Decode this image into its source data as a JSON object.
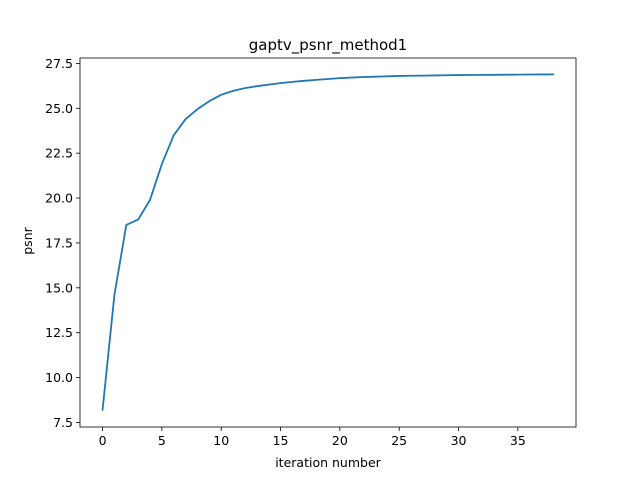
{
  "chart_data": {
    "type": "line",
    "title": "gaptv_psnr_method1",
    "xlabel": "iteration number",
    "ylabel": "psnr",
    "xlim": [
      -1.9,
      39.9
    ],
    "ylim": [
      7.25,
      27.8
    ],
    "x_ticks": [
      0,
      5,
      10,
      15,
      20,
      25,
      30,
      35
    ],
    "x_tick_labels": [
      "0",
      "5",
      "10",
      "15",
      "20",
      "25",
      "30",
      "35"
    ],
    "y_ticks": [
      7.5,
      10.0,
      12.5,
      15.0,
      17.5,
      20.0,
      22.5,
      25.0,
      27.5
    ],
    "y_tick_labels": [
      "7.5",
      "10.0",
      "12.5",
      "15.0",
      "17.5",
      "20.0",
      "22.5",
      "25.0",
      "27.5"
    ],
    "grid": false,
    "color": "#1f77b4",
    "series": [
      {
        "x": [
          0,
          1,
          2,
          3,
          4,
          5,
          6,
          7,
          8,
          9,
          10,
          11,
          12,
          13,
          14,
          15,
          16,
          17,
          18,
          19,
          20,
          21,
          22,
          23,
          24,
          25,
          26,
          27,
          28,
          29,
          30,
          31,
          32,
          33,
          34,
          35,
          36,
          37,
          38
        ],
        "values": [
          8.2,
          14.6,
          18.5,
          18.8,
          19.9,
          21.9,
          23.5,
          24.4,
          24.95,
          25.4,
          25.75,
          25.97,
          26.12,
          26.23,
          26.32,
          26.4,
          26.47,
          26.53,
          26.58,
          26.63,
          26.68,
          26.71,
          26.74,
          26.76,
          26.78,
          26.8,
          26.81,
          26.82,
          26.83,
          26.84,
          26.85,
          26.855,
          26.86,
          26.865,
          26.87,
          26.875,
          26.88,
          26.885,
          26.89
        ]
      }
    ]
  }
}
